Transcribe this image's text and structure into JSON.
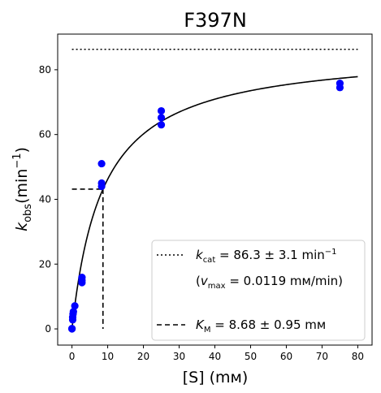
{
  "chart_data": {
    "type": "scatter",
    "title": "F397N",
    "xlabel": "[S] (mм)",
    "ylabel": "k_obs (min⁻¹)",
    "ylabel_parts": {
      "symbol": "k",
      "subscript": "obs",
      "unit": "(min",
      "superscript": "−1",
      "close": ")"
    },
    "xlim": [
      -4,
      84
    ],
    "ylim": [
      -5,
      91
    ],
    "x_ticks": [
      0,
      10,
      20,
      30,
      40,
      50,
      60,
      70,
      80
    ],
    "y_ticks": [
      0,
      20,
      40,
      60,
      80
    ],
    "grid": false,
    "legend_position": "lower-right",
    "points": [
      {
        "x": 0,
        "y": 0.0
      },
      {
        "x": 0,
        "y": 0.1
      },
      {
        "x": 0.2,
        "y": 2.8
      },
      {
        "x": 0.2,
        "y": 3.6
      },
      {
        "x": 0.3,
        "y": 4.6
      },
      {
        "x": 0.4,
        "y": 5.3
      },
      {
        "x": 0.8,
        "y": 7.1
      },
      {
        "x": 2.8,
        "y": 14.3
      },
      {
        "x": 2.8,
        "y": 15.0
      },
      {
        "x": 2.8,
        "y": 15.9
      },
      {
        "x": 8.3,
        "y": 44.0
      },
      {
        "x": 8.3,
        "y": 45.0
      },
      {
        "x": 8.3,
        "y": 51.0
      },
      {
        "x": 25,
        "y": 63.0
      },
      {
        "x": 25,
        "y": 65.2
      },
      {
        "x": 25,
        "y": 67.3
      },
      {
        "x": 75,
        "y": 74.5
      },
      {
        "x": 75,
        "y": 75.8
      }
    ],
    "fit": {
      "model": "michaelis-menten",
      "kcat": 86.3,
      "km": 8.68,
      "x_start": 0,
      "x_end": 80
    },
    "kcat_line": {
      "y": 86.3,
      "x_start": 0,
      "x_end": 80,
      "style": "dotted"
    },
    "km_lines": {
      "x": 8.68,
      "y": 43.15,
      "x_start": 0,
      "style": "dashed"
    },
    "colors": {
      "points": "#0000ff",
      "fit": "#000000",
      "reference": "#000000"
    },
    "legend": {
      "kcat_label": {
        "symbol": "k",
        "subscript": "cat",
        "text": " = 86.3 ± 3.1 min",
        "superscript": "−1"
      },
      "vmax_label": {
        "open": "(",
        "symbol": "v",
        "subscript": "max",
        "text": " = 0.0119 mм/min)"
      },
      "km_label": {
        "symbol": "K",
        "subscript": "M",
        "text": " = 8.68 ± 0.95 mм"
      }
    }
  }
}
